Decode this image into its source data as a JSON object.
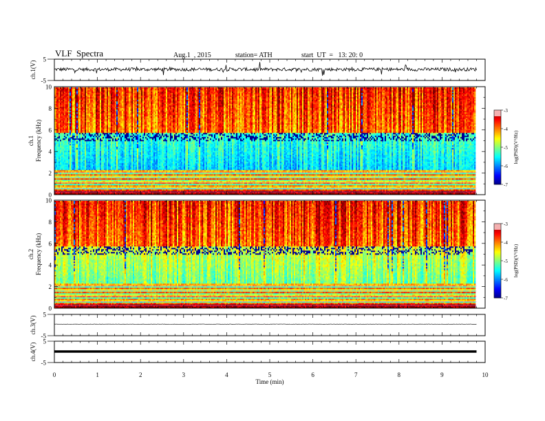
{
  "header": {
    "title": "VLF  Spectra",
    "date": "Aug.1  , 2015",
    "station": "station= ATH",
    "start_ut": "start  UT  =   13: 20: 0"
  },
  "chart_data": [
    {
      "type": "line",
      "ylabel": "ch.1(V)",
      "ylim": [
        -5,
        5
      ],
      "yticks": [
        "5",
        "-5"
      ],
      "xlim": [
        0,
        10
      ],
      "note": "noisy trace around ~0 V"
    },
    {
      "type": "heatmap",
      "ylabel_top": "ch.1",
      "ylabel": "Frequency  (kHz)",
      "ylim": [
        0,
        10
      ],
      "yticks": [
        "0",
        "2",
        "4",
        "6",
        "8",
        "10"
      ],
      "xlim": [
        0,
        10
      ],
      "data_end_min": 9.8,
      "colorbar": {
        "label": "log(PSD)(V²/Hz)",
        "range": [
          -7,
          -3
        ],
        "ticks": [
          "-3",
          "-4",
          "-5",
          "-6",
          "-7"
        ]
      }
    },
    {
      "type": "heatmap",
      "ylabel_top": "ch.2",
      "ylabel": "Frequency  (kHz)",
      "ylim": [
        0,
        10
      ],
      "yticks": [
        "0",
        "2",
        "4",
        "6",
        "8",
        "10"
      ],
      "xlim": [
        0,
        10
      ],
      "data_end_min": 9.8,
      "colorbar": {
        "label": "log(PSD)(V²/Hz)",
        "range": [
          -7,
          -3
        ],
        "ticks": [
          "-3",
          "-4",
          "-5",
          "-6",
          "-7"
        ]
      }
    },
    {
      "type": "line",
      "ylabel": "ch.3(V)",
      "ylim": [
        -5,
        5
      ],
      "yticks": [
        "5",
        "-5"
      ],
      "xlim": [
        0,
        10
      ],
      "note": "flat trace near 0 V"
    },
    {
      "type": "line",
      "ylabel": "ch.4(V)",
      "ylim": [
        -5,
        5
      ],
      "yticks": [
        "5",
        "-5"
      ],
      "xlim": [
        0,
        10
      ],
      "note": "thick flat trace near 0 V"
    }
  ],
  "x_axis": {
    "label": "Time  (min)",
    "ticks": [
      "0",
      "1",
      "2",
      "3",
      "4",
      "5",
      "6",
      "7",
      "8",
      "9",
      "10"
    ]
  }
}
